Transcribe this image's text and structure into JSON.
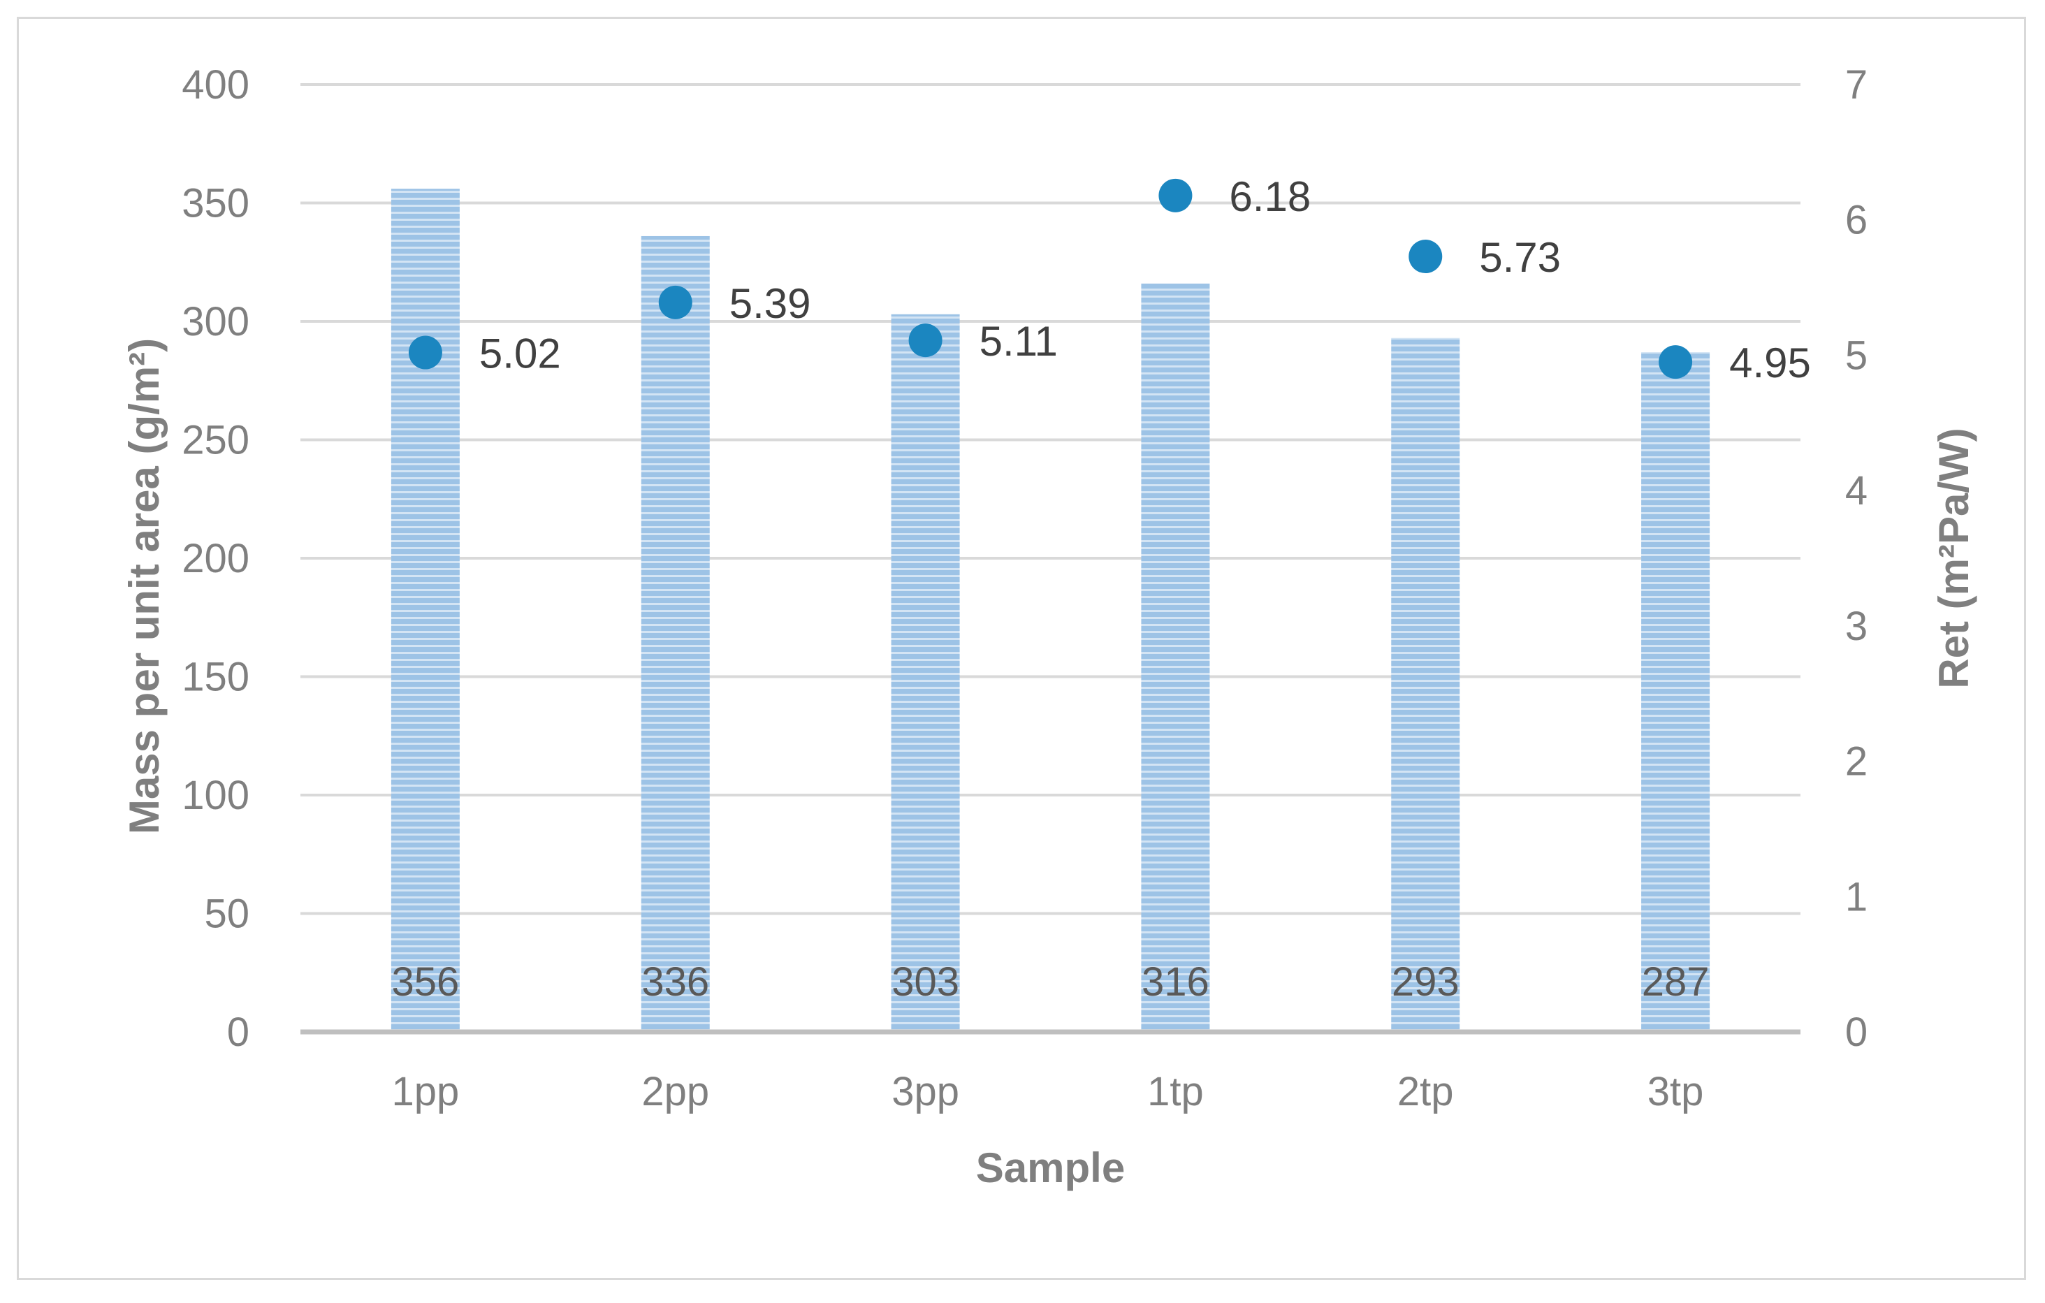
{
  "chart_data": {
    "type": "bar",
    "categories": [
      "1pp",
      "2pp",
      "3pp",
      "1tp",
      "2tp",
      "3tp"
    ],
    "series": [
      {
        "axis": "left",
        "type": "bar",
        "values": [
          356,
          336,
          303,
          316,
          293,
          287
        ]
      },
      {
        "axis": "right",
        "type": "scatter",
        "values": [
          5.02,
          5.39,
          5.11,
          6.18,
          5.73,
          4.95
        ]
      }
    ],
    "bar_labels": [
      "356",
      "336",
      "303",
      "316",
      "293",
      "287"
    ],
    "point_labels": [
      "5.02",
      "5.39",
      "5.11",
      "6.18",
      "5.73",
      "4.95"
    ],
    "xlabel": "Sample",
    "ylabel": "Mass per unit area (g/m²)",
    "y2label": "Ret (m²Pa/W)",
    "ylim": [
      0,
      400
    ],
    "y2lim": [
      0,
      7
    ],
    "yticks": [
      "0",
      "50",
      "100",
      "150",
      "200",
      "250",
      "300",
      "350",
      "400"
    ],
    "y2ticks": [
      "0",
      "1",
      "2",
      "3",
      "4",
      "5",
      "6",
      "7"
    ],
    "grid": true,
    "legend": "none",
    "colors": {
      "bar": "#9dc3e6",
      "bar_stripe": "#ffffff",
      "point": "#1b86c0",
      "grid": "#d9d9d9",
      "axis": "#bfbfbf"
    }
  }
}
